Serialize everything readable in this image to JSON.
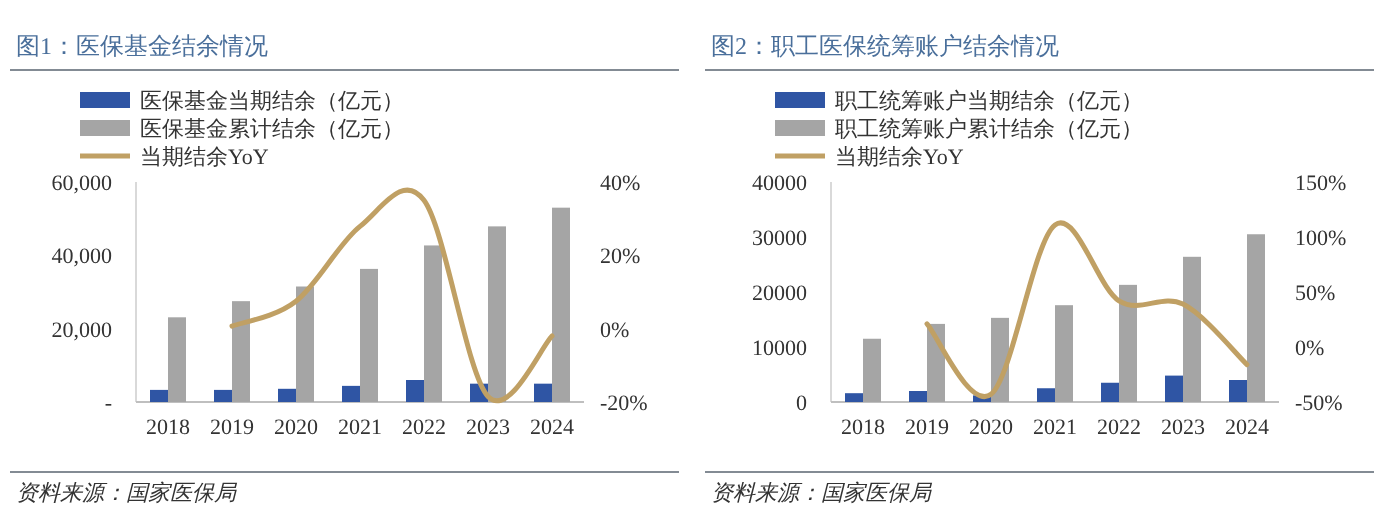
{
  "chart_data": [
    {
      "type": "bar",
      "title": "图1：医保基金结余情况",
      "categories": [
        "2018",
        "2019",
        "2020",
        "2021",
        "2022",
        "2023",
        "2024"
      ],
      "series": [
        {
          "name": "医保基金当期结余（亿元）",
          "color": "#2f55a4",
          "values": [
            3300,
            3300,
            3600,
            4400,
            6000,
            5000,
            5000
          ]
        },
        {
          "name": "医保基金累计结余（亿元）",
          "color": "#a5a5a5",
          "values": [
            23100,
            27500,
            31500,
            36300,
            42700,
            47900,
            53000
          ]
        },
        {
          "name": "当期结余YoY",
          "type": "line",
          "axis": "y2",
          "color": "#c0a064",
          "values": [
            null,
            0.7,
            7.5,
            27.9,
            35,
            -18.5,
            -2
          ]
        }
      ],
      "ylim": [
        0,
        60000
      ],
      "yticks": [
        {
          "value": 0,
          "label": "-"
        },
        {
          "value": 20000,
          "label": "20,000"
        },
        {
          "value": 40000,
          "label": "40,000"
        },
        {
          "value": 60000,
          "label": "60,000"
        }
      ],
      "y2lim": [
        -20,
        40
      ],
      "y2ticks": [
        {
          "value": -20,
          "label": "-20%"
        },
        {
          "value": 0,
          "label": "0%"
        },
        {
          "value": 20,
          "label": "20%"
        },
        {
          "value": 40,
          "label": "40%"
        }
      ],
      "legend": "top",
      "annotations": [
        "资料来源：国家医保局"
      ]
    },
    {
      "type": "bar",
      "title": "图2：职工医保统筹账户结余情况",
      "categories": [
        "2018",
        "2019",
        "2020",
        "2021",
        "2022",
        "2023",
        "2024"
      ],
      "series": [
        {
          "name": "职工统筹账户当期结余（亿元）",
          "color": "#2f55a4",
          "values": [
            1600,
            2000,
            1200,
            2500,
            3500,
            4800,
            4000
          ]
        },
        {
          "name": "职工统筹账户累计结余（亿元）",
          "color": "#a5a5a5",
          "values": [
            11500,
            14200,
            15300,
            17600,
            21300,
            26400,
            30500
          ]
        },
        {
          "name": "当期结余YoY",
          "type": "line",
          "axis": "y2",
          "color": "#c0a064",
          "values": [
            null,
            21,
            -43,
            111,
            42,
            39,
            -16
          ]
        }
      ],
      "ylim": [
        0,
        40000
      ],
      "yticks": [
        0,
        10000,
        20000,
        30000,
        40000
      ],
      "y2lim": [
        -50,
        150
      ],
      "y2ticks": [
        {
          "value": -50,
          "label": "-50%"
        },
        {
          "value": 0,
          "label": "0%"
        },
        {
          "value": 50,
          "label": "50%"
        },
        {
          "value": 100,
          "label": "100%"
        },
        {
          "value": 150,
          "label": "150%"
        }
      ],
      "legend": "top",
      "annotations": [
        "资料来源：国家医保局"
      ]
    }
  ]
}
